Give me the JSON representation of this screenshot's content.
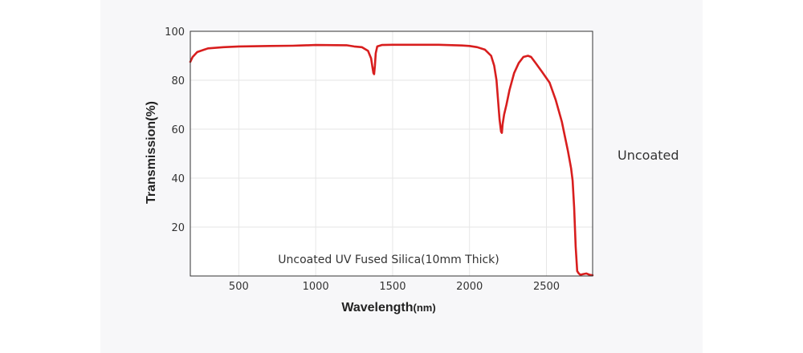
{
  "side_label": "Uncoated",
  "colors": {
    "line": "#d81e1e",
    "plot_bg": "#ffffff",
    "grid": "#e6e6e6",
    "axis": "#333333",
    "panel_bg": "#f7f7f9"
  },
  "chart_data": {
    "type": "line",
    "title": "",
    "annotation": "Uncoated UV Fused Silica(10mm Thick)",
    "xlabel_main": "Wavelength",
    "xlabel_unit": "(nm)",
    "ylabel": "Transmission(%)",
    "xlim": [
      185,
      2800
    ],
    "ylim": [
      0,
      100
    ],
    "xticks": [
      500,
      1000,
      1500,
      2000,
      2500
    ],
    "yticks": [
      20,
      40,
      60,
      80,
      100
    ],
    "series": [
      {
        "name": "Uncoated UV Fused Silica(10mm Thick)",
        "x": [
          185,
          200,
          230,
          300,
          400,
          500,
          700,
          850,
          900,
          950,
          1000,
          1200,
          1250,
          1300,
          1340,
          1360,
          1370,
          1375,
          1380,
          1385,
          1390,
          1400,
          1430,
          1500,
          1800,
          1950,
          2000,
          2050,
          2100,
          2140,
          2160,
          2175,
          2185,
          2195,
          2205,
          2210,
          2215,
          2225,
          2240,
          2260,
          2290,
          2320,
          2350,
          2380,
          2400,
          2430,
          2470,
          2520,
          2560,
          2600,
          2620,
          2640,
          2660,
          2670,
          2680,
          2690,
          2700,
          2710,
          2720,
          2740,
          2760,
          2780,
          2800
        ],
        "y": [
          87.5,
          89.5,
          91.5,
          93,
          93.5,
          93.8,
          94,
          94.1,
          94.2,
          94.3,
          94.4,
          94.3,
          93.8,
          93.5,
          92,
          89,
          85,
          83,
          82.5,
          86,
          91,
          93.8,
          94.4,
          94.5,
          94.5,
          94.2,
          94,
          93.5,
          92.5,
          90,
          86,
          80,
          72,
          64,
          59,
          58.5,
          62,
          66,
          70,
          76,
          83,
          87,
          89.5,
          90,
          89.5,
          87,
          83.5,
          79,
          72,
          63,
          57,
          51,
          44,
          39,
          28,
          12,
          2,
          1,
          0.5,
          0.8,
          1,
          0.5,
          0.3
        ]
      }
    ]
  }
}
